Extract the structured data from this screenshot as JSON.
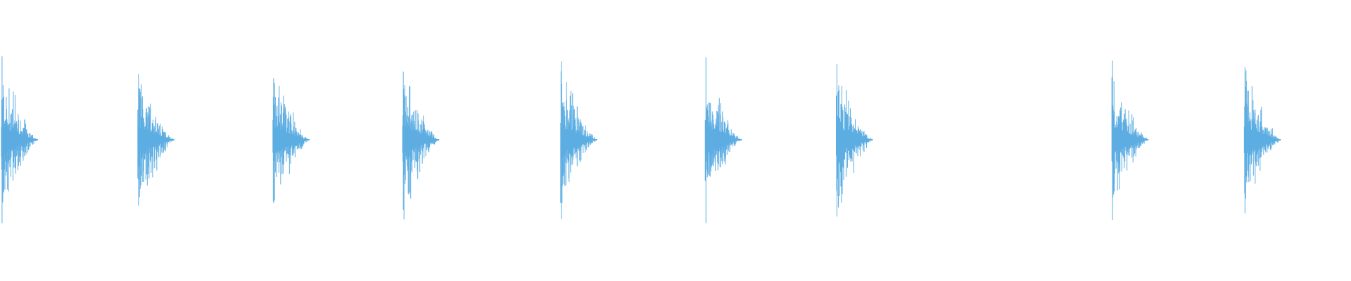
{
  "waveform": {
    "color": "#5dade2",
    "background": "#ffffff",
    "bursts": [
      {
        "onset_fraction": 0.001,
        "peak_up": 0.99,
        "peak_down": 0.99
      },
      {
        "onset_fraction": 0.102,
        "peak_up": 0.78,
        "peak_down": 0.78
      },
      {
        "onset_fraction": 0.202,
        "peak_up": 0.73,
        "peak_down": 0.75
      },
      {
        "onset_fraction": 0.298,
        "peak_up": 0.81,
        "peak_down": 0.83
      },
      {
        "onset_fraction": 0.415,
        "peak_up": 0.93,
        "peak_down": 0.94
      },
      {
        "onset_fraction": 0.522,
        "peak_up": 0.98,
        "peak_down": 0.99
      },
      {
        "onset_fraction": 0.619,
        "peak_up": 0.9,
        "peak_down": 0.91
      },
      {
        "onset_fraction": 0.823,
        "peak_up": 0.94,
        "peak_down": 0.95
      },
      {
        "onset_fraction": 0.921,
        "peak_up": 0.86,
        "peak_down": 0.87
      }
    ]
  }
}
